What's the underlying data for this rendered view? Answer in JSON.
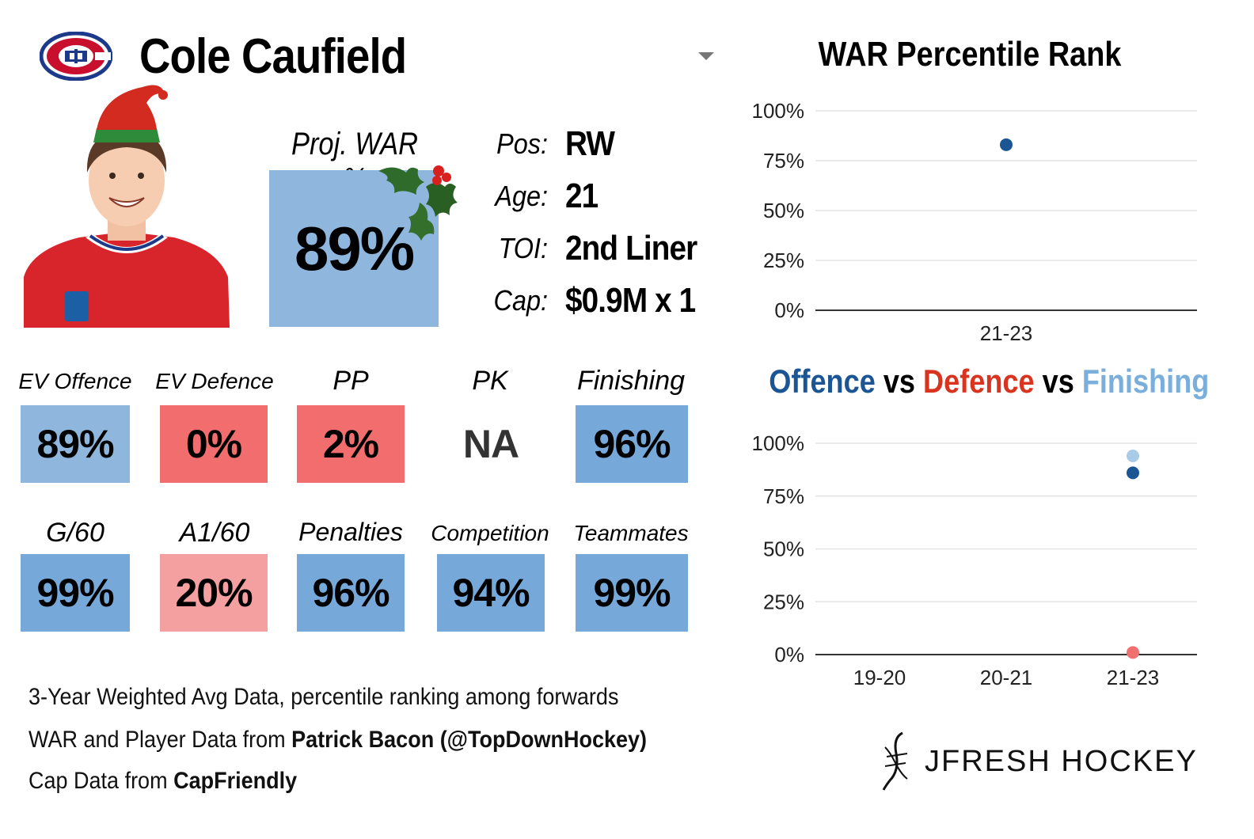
{
  "player": {
    "name": "Cole Caufield",
    "team_logo_icon": "canadiens-logo-icon",
    "proj_war_label": "Proj. WAR %",
    "proj_war_value": "89%",
    "proj_war_color": "#8fb7de"
  },
  "info": [
    {
      "label": "Pos:",
      "value": "RW"
    },
    {
      "label": "Age:",
      "value": "21"
    },
    {
      "label": "TOI:",
      "value": "2nd Liner"
    },
    {
      "label": "Cap:",
      "value": "$0.9M x 1"
    }
  ],
  "stats_row1": [
    {
      "label": "EV Offence",
      "value": "89%",
      "color": "#8fb7de"
    },
    {
      "label": "EV Defence",
      "value": "0%",
      "color": "#f26d6d"
    },
    {
      "label": "PP",
      "value": "2%",
      "color": "#f26d6d"
    },
    {
      "label": "PK",
      "value": "NA",
      "color": "none"
    },
    {
      "label": "Finishing",
      "value": "96%",
      "color": "#76a9da"
    }
  ],
  "stats_row2": [
    {
      "label": "G/60",
      "value": "99%",
      "color": "#76a9da"
    },
    {
      "label": "A1/60",
      "value": "20%",
      "color": "#f4a0a0"
    },
    {
      "label": "Penalties",
      "value": "96%",
      "color": "#76a9da"
    },
    {
      "label": "Competition",
      "value": "94%",
      "color": "#76a9da"
    },
    {
      "label": "Teammates",
      "value": "99%",
      "color": "#76a9da"
    }
  ],
  "footnotes": {
    "line1": "3-Year Weighted Avg Data, percentile ranking among forwards",
    "line2_prefix": "WAR and Player Data from ",
    "line2_bold": "Patrick Bacon (@TopDownHockey)",
    "line3_prefix": "Cap Data from ",
    "line3_bold": "CapFriendly"
  },
  "brand": {
    "name": "JFRESH HOCKEY",
    "icon": "jfresh-logo-icon"
  },
  "colors": {
    "offence": "#1b5594",
    "defence": "#d9341f",
    "finishing": "#7aaedb",
    "war_point": "#1b5594",
    "grid": "#e3e3e3",
    "axis": "#333333"
  },
  "chart_data": [
    {
      "type": "scatter",
      "title": "WAR Percentile Rank",
      "categories": [
        "21-23"
      ],
      "series": [
        {
          "name": "WAR",
          "values": [
            83
          ]
        }
      ],
      "yticks": [
        "0%",
        "25%",
        "50%",
        "75%",
        "100%"
      ],
      "ylim": [
        0,
        100
      ],
      "xlabel": "",
      "ylabel": ""
    },
    {
      "type": "scatter",
      "title_parts": [
        {
          "text": "Offence",
          "role": "offence"
        },
        {
          "text": " vs ",
          "role": "plain"
        },
        {
          "text": "Defence",
          "role": "defence"
        },
        {
          "text": " vs ",
          "role": "plain"
        },
        {
          "text": "Finishing",
          "role": "finishing"
        }
      ],
      "categories": [
        "19-20",
        "20-21",
        "21-23"
      ],
      "series": [
        {
          "name": "Offence",
          "values": [
            null,
            null,
            86
          ]
        },
        {
          "name": "Defence",
          "values": [
            null,
            null,
            1
          ]
        },
        {
          "name": "Finishing",
          "values": [
            null,
            null,
            94
          ]
        }
      ],
      "yticks": [
        "0%",
        "25%",
        "50%",
        "75%",
        "100%"
      ],
      "ylim": [
        0,
        100
      ],
      "xlabel": "",
      "ylabel": ""
    }
  ]
}
